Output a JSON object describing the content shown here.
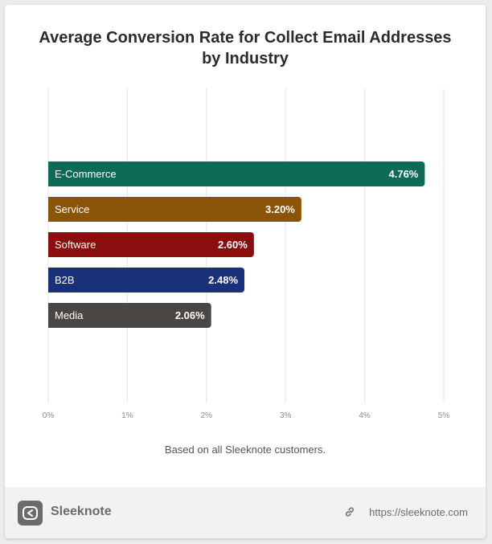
{
  "chart_data": {
    "type": "bar",
    "orientation": "horizontal",
    "title_lines": [
      "Average Conversion Rate for Collect Email Addresses",
      "by Industry"
    ],
    "categories": [
      "E-Commerce",
      "Service",
      "Software",
      "B2B",
      "Media"
    ],
    "values": [
      4.76,
      3.2,
      2.6,
      2.48,
      2.06
    ],
    "value_labels": [
      "4.76%",
      "3.20%",
      "2.60%",
      "2.48%",
      "2.06%"
    ],
    "colors": [
      "#0b6b57",
      "#8a5409",
      "#8b0d0d",
      "#19307a",
      "#4a4644"
    ],
    "xlim": [
      0,
      5
    ],
    "xticks": [
      0,
      1,
      2,
      3,
      4,
      5
    ],
    "xtick_labels": [
      "0%",
      "1%",
      "2%",
      "3%",
      "4%",
      "5%"
    ],
    "grid": true
  },
  "caption": "Based on all Sleeknote customers.",
  "footer": {
    "brand": "Sleeknote",
    "url": "https://sleeknote.com"
  }
}
